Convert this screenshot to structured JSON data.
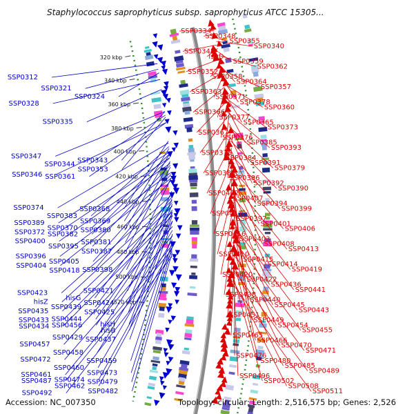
{
  "title": "Staphylococcus saprophyticus subsp. saprophyticus ATCC 15305...",
  "footer": {
    "accession": "Accession: NC_007350",
    "summary": "Topology: circular; Length: 2,516,575 bp; Genes: 2,526"
  },
  "colors": {
    "forward": "#0000cc",
    "reverse": "#dd0000",
    "backbone": "#8a8a8a",
    "gc": "#2e8b2e"
  },
  "ticks": [
    {
      "label": "320 kbp",
      "pos": 0.04
    },
    {
      "label": "340 kbp",
      "pos": 0.105
    },
    {
      "label": "360 kbp",
      "pos": 0.172
    },
    {
      "label": "380 kbp",
      "pos": 0.24
    },
    {
      "label": "400 kbp",
      "pos": 0.305
    },
    {
      "label": "420 kbp",
      "pos": 0.375
    },
    {
      "label": "440 kbp",
      "pos": 0.445
    },
    {
      "label": "460 kbp",
      "pos": 0.515
    },
    {
      "label": "480 kbp",
      "pos": 0.585
    },
    {
      "label": "500 kbp",
      "pos": 0.655
    },
    {
      "label": "520 kbp",
      "pos": 0.725
    }
  ],
  "left_genes": [
    {
      "label": "SSP0312",
      "pos": 0.075
    },
    {
      "label": "SSP0321",
      "pos": 0.09
    },
    {
      "label": "SSP0324",
      "pos": 0.1
    },
    {
      "label": "SSP0328",
      "pos": 0.118
    },
    {
      "label": "SSP0335",
      "pos": 0.145
    },
    {
      "label": "SSP0343",
      "pos": 0.205
    },
    {
      "label": "SSP0347",
      "pos": 0.205
    },
    {
      "label": "SSP0344",
      "pos": 0.215
    },
    {
      "label": "SSP0353",
      "pos": 0.22
    },
    {
      "label": "SSP0346",
      "pos": 0.235
    },
    {
      "label": "SSP0361",
      "pos": 0.235
    },
    {
      "label": "SSP0368",
      "pos": 0.285
    },
    {
      "label": "SSP0374",
      "pos": 0.29
    },
    {
      "label": "SSP0383",
      "pos": 0.3
    },
    {
      "label": "SSP0369",
      "pos": 0.305
    },
    {
      "label": "SSP0389",
      "pos": 0.315
    },
    {
      "label": "SSP0370",
      "pos": 0.32
    },
    {
      "label": "SSP0380",
      "pos": 0.32
    },
    {
      "label": "SSP0372",
      "pos": 0.33
    },
    {
      "label": "SSP0382",
      "pos": 0.33
    },
    {
      "label": "SSP0381",
      "pos": 0.34
    },
    {
      "label": "SSP0400",
      "pos": 0.345
    },
    {
      "label": "SSP0395",
      "pos": 0.35
    },
    {
      "label": "SSP0387",
      "pos": 0.355
    },
    {
      "label": "SSP0396",
      "pos": 0.37
    },
    {
      "label": "SSP0405",
      "pos": 0.375
    },
    {
      "label": "SSP0398",
      "pos": 0.385
    },
    {
      "label": "SSP0404",
      "pos": 0.385
    },
    {
      "label": "SSP0418",
      "pos": 0.39
    },
    {
      "label": "SSP0421",
      "pos": 0.42
    },
    {
      "label": "SSP0423",
      "pos": 0.43
    },
    {
      "label": "hisG",
      "pos": 0.435
    },
    {
      "label": "SSP0424",
      "pos": 0.44
    },
    {
      "label": "hisZ",
      "pos": 0.445
    },
    {
      "label": "SSP0439",
      "pos": 0.45
    },
    {
      "label": "SSP0425",
      "pos": 0.455
    },
    {
      "label": "SSP0435",
      "pos": 0.46
    },
    {
      "label": "SSP0444",
      "pos": 0.47
    },
    {
      "label": "hisH",
      "pos": 0.475
    },
    {
      "label": "SSP0433",
      "pos": 0.475
    },
    {
      "label": "SSP0456",
      "pos": 0.48
    },
    {
      "label": "hisB",
      "pos": 0.485
    },
    {
      "label": "SSP0434",
      "pos": 0.485
    },
    {
      "label": "SSP0429",
      "pos": 0.5
    },
    {
      "label": "SSP0437",
      "pos": 0.5
    },
    {
      "label": "SSP0457",
      "pos": 0.515
    },
    {
      "label": "SSP0458",
      "pos": 0.525
    },
    {
      "label": "SSP0459",
      "pos": 0.535
    },
    {
      "label": "SSP0472",
      "pos": 0.54
    },
    {
      "label": "SSP0460",
      "pos": 0.55
    },
    {
      "label": "SSP0473",
      "pos": 0.555
    },
    {
      "label": "SSP0461",
      "pos": 0.565
    },
    {
      "label": "SSP0474",
      "pos": 0.57
    },
    {
      "label": "SSP0479",
      "pos": 0.57
    },
    {
      "label": "SSP0487",
      "pos": 0.575
    },
    {
      "label": "SSP0462",
      "pos": 0.58
    },
    {
      "label": "SSP0482",
      "pos": 0.585
    },
    {
      "label": "SSP0492",
      "pos": 0.595
    }
  ],
  "right_genes": [
    "SSP0334",
    "SSP0348",
    "SSP0355",
    "SSP0340",
    "SSP0345",
    "ispD",
    "SSP0359",
    "SSP0362",
    "SSP0352",
    "SSP0358",
    "SSP0364",
    "SSP0357",
    "SSP0363",
    "SSP0371",
    "SSP0378",
    "SSP0360",
    "SSP0366",
    "SSP0377",
    "SSP0365",
    "SSP0373",
    "SSP0367",
    "SSP0376",
    "SSP0385",
    "SSP0393",
    "SSP0375",
    "SSP0384",
    "SSP0391",
    "SSP0379",
    "SSP0388",
    "SSP0386",
    "SSP0392",
    "SSP0390",
    "SSP0402",
    "SSP0407",
    "SSP0394",
    "SSP0399",
    "SSP0411",
    "SSP0397",
    "SSP0401",
    "SSP0406",
    "SSP0416",
    "SSP0403",
    "SSP0408",
    "SSP0413",
    "SSP0410",
    "SSP0415",
    "SSP0414",
    "SSP0419",
    "SSP0420",
    "SSP0422",
    "SSP0436",
    "SSP0441",
    "SSP0438",
    "SSP0440",
    "SSP0445",
    "SSP0443",
    "SSP0451",
    "SSP0449",
    "SSP0454",
    "SSP0455",
    "SSP0465",
    "SSP0466",
    "SSP0470",
    "SSP0471",
    "SSP0476",
    "SSP0480",
    "SSP0485",
    "SSP0489",
    "SSP0496",
    "SSP0502",
    "SSP0508",
    "SSP0511"
  ]
}
